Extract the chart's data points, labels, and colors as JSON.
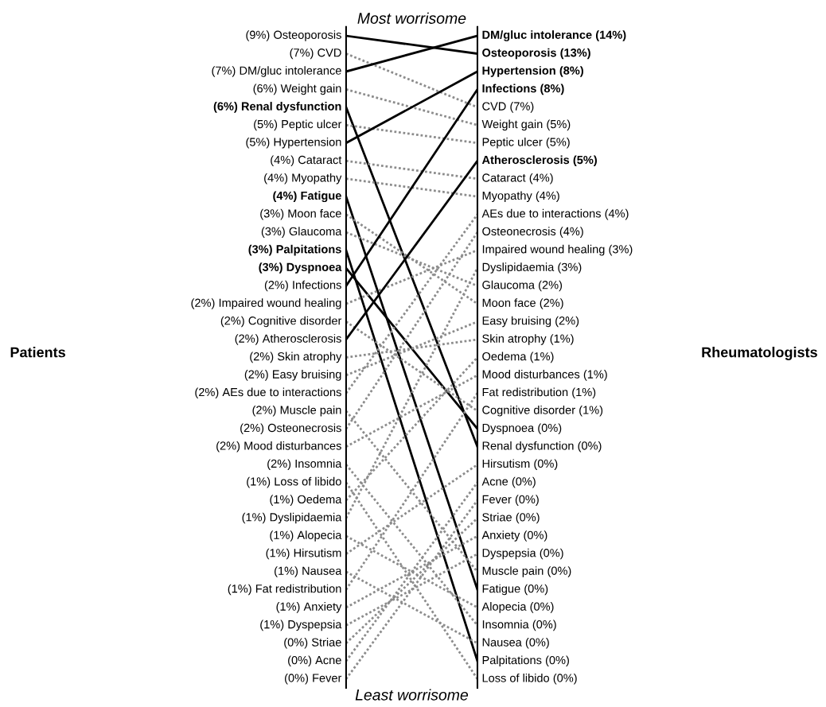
{
  "chart_data": {
    "type": "other",
    "title": "Most worrisome",
    "xlabel": "Least worrisome",
    "categories": [
      "Patients",
      "Rheumatologists"
    ],
    "y_categories": [
      "Osteoporosis",
      "CVD",
      "DM/gluc intolerance",
      "Weight gain",
      "Renal dysfunction",
      "Peptic ulcer",
      "Hypertension",
      "Cataract",
      "Myopathy",
      "Fatigue",
      "Moon face",
      "Glaucoma",
      "Palpitations",
      "Dyspnoea",
      "Infections",
      "Impaired wound healing",
      "Cognitive disorder",
      "Atherosclerosis",
      "Skin atrophy",
      "Easy bruising",
      "AEs due to interactions",
      "Muscle pain",
      "Osteonecrosis",
      "Mood disturbances",
      "Insomnia",
      "Loss of libido",
      "Oedema",
      "Dyslipidaemia",
      "Alopecia",
      "Hirsutism",
      "Nausea",
      "Fat redistribution",
      "Anxiety",
      "Dyspepsia",
      "Striae",
      "Acne",
      "Fever"
    ],
    "y2_categories": [
      "DM/gluc intolerance",
      "Osteoporosis",
      "Hypertension",
      "Infections",
      "CVD",
      "Weight gain",
      "Peptic ulcer",
      "Atherosclerosis",
      "Cataract",
      "Myopathy",
      "AEs due to interactions",
      "Osteonecrosis",
      "Impaired wound healing",
      "Dyslipidaemia",
      "Glaucoma",
      "Moon face",
      "Easy bruising",
      "Skin atrophy",
      "Oedema",
      "Mood disturbances",
      "Fat redistribution",
      "Cognitive disorder",
      "Dyspnoea",
      "Renal dysfunction",
      "Hirsutism",
      "Acne",
      "Fever",
      "Striae",
      "Anxiety",
      "Dyspepsia",
      "Muscle pain",
      "Fatigue",
      "Alopecia",
      "Insomnia",
      "Nausea",
      "Palpitations",
      "Loss of libido"
    ],
    "series": [
      {
        "values": [
          9,
          13
        ],
        "color": "#000000",
        "line_style": "solid",
        "value_labels": [
          "(9%)",
          "(13%)"
        ]
      },
      {
        "values": [
          7,
          7
        ],
        "color": "#8c8c8c",
        "line_style": "dotted",
        "value_labels": [
          "(7%)",
          "(7%)"
        ]
      },
      {
        "values": [
          7,
          14
        ],
        "color": "#000000",
        "line_style": "solid",
        "value_labels": [
          "(7%)",
          "(14%)"
        ]
      },
      {
        "values": [
          6,
          5
        ],
        "color": "#8c8c8c",
        "line_style": "dotted",
        "value_labels": [
          "(6%)",
          "(5%)"
        ]
      },
      {
        "values": [
          6,
          0
        ],
        "color": "#000000",
        "line_style": "solid",
        "value_labels": [
          "(6%)",
          "(0%)"
        ]
      },
      {
        "values": [
          5,
          5
        ],
        "color": "#8c8c8c",
        "line_style": "dotted",
        "value_labels": [
          "(5%)",
          "(5%)"
        ]
      },
      {
        "values": [
          5,
          8
        ],
        "color": "#000000",
        "line_style": "solid",
        "value_labels": [
          "(5%)",
          "(8%)"
        ]
      },
      {
        "values": [
          4,
          4
        ],
        "color": "#8c8c8c",
        "line_style": "dotted",
        "value_labels": [
          "(4%)",
          "(4%)"
        ]
      },
      {
        "values": [
          4,
          4
        ],
        "color": "#8c8c8c",
        "line_style": "dotted",
        "value_labels": [
          "(4%)",
          "(4%)"
        ]
      },
      {
        "values": [
          4,
          0
        ],
        "color": "#000000",
        "line_style": "solid",
        "value_labels": [
          "(4%)",
          "(0%)"
        ]
      },
      {
        "values": [
          3,
          2
        ],
        "color": "#8c8c8c",
        "line_style": "dotted",
        "value_labels": [
          "(3%)",
          "(2%)"
        ]
      },
      {
        "values": [
          3,
          2
        ],
        "color": "#8c8c8c",
        "line_style": "dotted",
        "value_labels": [
          "(3%)",
          "(2%)"
        ]
      },
      {
        "values": [
          3,
          0
        ],
        "color": "#000000",
        "line_style": "solid",
        "value_labels": [
          "(3%)",
          "(0%)"
        ]
      },
      {
        "values": [
          3,
          0
        ],
        "color": "#000000",
        "line_style": "solid",
        "value_labels": [
          "(3%)",
          "(0%)"
        ]
      },
      {
        "values": [
          2,
          8
        ],
        "color": "#000000",
        "line_style": "solid",
        "value_labels": [
          "(2%)",
          "(8%)"
        ]
      },
      {
        "values": [
          2,
          3
        ],
        "color": "#8c8c8c",
        "line_style": "dotted",
        "value_labels": [
          "(2%)",
          "(3%)"
        ]
      },
      {
        "values": [
          2,
          1
        ],
        "color": "#8c8c8c",
        "line_style": "dotted",
        "value_labels": [
          "(2%)",
          "(1%)"
        ]
      },
      {
        "values": [
          2,
          5
        ],
        "color": "#000000",
        "line_style": "solid",
        "value_labels": [
          "(2%)",
          "(5%)"
        ]
      },
      {
        "values": [
          2,
          1
        ],
        "color": "#8c8c8c",
        "line_style": "dotted",
        "value_labels": [
          "(2%)",
          "(1%)"
        ]
      },
      {
        "values": [
          2,
          2
        ],
        "color": "#8c8c8c",
        "line_style": "dotted",
        "value_labels": [
          "(2%)",
          "(2%)"
        ]
      },
      {
        "values": [
          2,
          4
        ],
        "color": "#8c8c8c",
        "line_style": "dotted",
        "value_labels": [
          "(2%)",
          "(4%)"
        ]
      },
      {
        "values": [
          2,
          0
        ],
        "color": "#8c8c8c",
        "line_style": "dotted",
        "value_labels": [
          "(2%)",
          "(0%)"
        ]
      },
      {
        "values": [
          2,
          4
        ],
        "color": "#8c8c8c",
        "line_style": "dotted",
        "value_labels": [
          "(2%)",
          "(4%)"
        ]
      },
      {
        "values": [
          2,
          1
        ],
        "color": "#8c8c8c",
        "line_style": "dotted",
        "value_labels": [
          "(2%)",
          "(1%)"
        ]
      },
      {
        "values": [
          2,
          0
        ],
        "color": "#8c8c8c",
        "line_style": "dotted",
        "value_labels": [
          "(2%)",
          "(0%)"
        ]
      },
      {
        "values": [
          1,
          0
        ],
        "color": "#8c8c8c",
        "line_style": "dotted",
        "value_labels": [
          "(1%)",
          "(0%)"
        ]
      },
      {
        "values": [
          1,
          1
        ],
        "color": "#8c8c8c",
        "line_style": "dotted",
        "value_labels": [
          "(1%)",
          "(1%)"
        ]
      },
      {
        "values": [
          1,
          3
        ],
        "color": "#8c8c8c",
        "line_style": "dotted",
        "value_labels": [
          "(1%)",
          "(3%)"
        ]
      },
      {
        "values": [
          1,
          0
        ],
        "color": "#8c8c8c",
        "line_style": "dotted",
        "value_labels": [
          "(1%)",
          "(0%)"
        ]
      },
      {
        "values": [
          1,
          0
        ],
        "color": "#8c8c8c",
        "line_style": "dotted",
        "value_labels": [
          "(1%)",
          "(0%)"
        ]
      },
      {
        "values": [
          1,
          0
        ],
        "color": "#8c8c8c",
        "line_style": "dotted",
        "value_labels": [
          "(1%)",
          "(0%)"
        ]
      },
      {
        "values": [
          1,
          1
        ],
        "color": "#8c8c8c",
        "line_style": "dotted",
        "value_labels": [
          "(1%)",
          "(1%)"
        ]
      },
      {
        "values": [
          1,
          0
        ],
        "color": "#8c8c8c",
        "line_style": "dotted",
        "value_labels": [
          "(1%)",
          "(0%)"
        ]
      },
      {
        "values": [
          1,
          0
        ],
        "color": "#8c8c8c",
        "line_style": "dotted",
        "value_labels": [
          "(1%)",
          "(0%)"
        ]
      },
      {
        "values": [
          0,
          0
        ],
        "color": "#8c8c8c",
        "line_style": "dotted",
        "value_labels": [
          "(0%)",
          "(0%)"
        ]
      },
      {
        "values": [
          0,
          0
        ],
        "color": "#8c8c8c",
        "line_style": "dotted",
        "value_labels": [
          "(0%)",
          "(0%)"
        ]
      },
      {
        "values": [
          0,
          0
        ],
        "color": "#8c8c8c",
        "line_style": "dotted",
        "value_labels": [
          "(0%)",
          "(0%)"
        ]
      }
    ]
  }
}
